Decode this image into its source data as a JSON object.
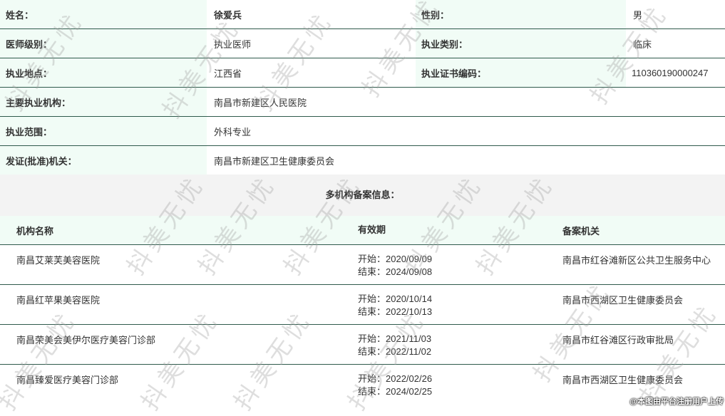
{
  "info": {
    "name_label": "姓名：",
    "name": "徐爱兵",
    "gender_label": "性别：",
    "gender": "男",
    "level_label": "医师级别：",
    "level": "执业医师",
    "category_label": "执业类别：",
    "category": "临床",
    "location_label": "执业地点：",
    "location": "江西省",
    "cert_label": "执业证书编码：",
    "cert": "110360190000247",
    "org_label": "主要执业机构：",
    "org": "南昌市新建区人民医院",
    "scope_label": "执业范围：",
    "scope": "外科专业",
    "issuer_label": "发证(批准)机关：",
    "issuer": "南昌市新建区卫生健康委员会"
  },
  "multi_title": "多机构备案信息：",
  "table": {
    "headers": [
      "机构名称",
      "有效期",
      "备案机关"
    ],
    "rows": [
      {
        "name": "南昌艾莱芙美容医院",
        "start": "开始：2020/09/09",
        "end": "结束：2024/09/08",
        "authority": "南昌市红谷滩新区公共卫生服务中心"
      },
      {
        "name": "南昌红苹果美容医院",
        "start": "开始：2020/10/14",
        "end": "结束：2022/10/13",
        "authority": "南昌市西湖区卫生健康委员会"
      },
      {
        "name": "南昌荣美会美伊尔医疗美容门诊部",
        "start": "开始：2021/11/03",
        "end": "结束：2022/11/02",
        "authority": "南昌市红谷滩区行政审批局"
      },
      {
        "name": "南昌臻爱医疗美容门诊部",
        "start": "开始：2022/02/26",
        "end": "结束：2024/02/25",
        "authority": "南昌市西湖区卫生健康委员会"
      }
    ]
  },
  "watermark": "抖美无忧",
  "credit": "@本图由平台注册用户上传",
  "colors": {
    "label_bg": "#f1fcf6",
    "border": "#2f5a4c",
    "band_bg": "#f3f3f3"
  }
}
